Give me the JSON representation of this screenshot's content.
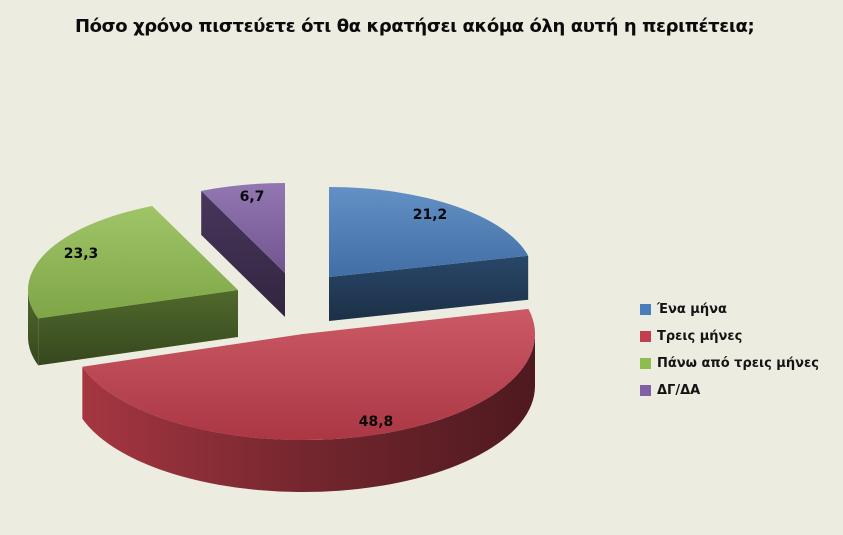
{
  "title": "Πόσο χρόνο πιστεύετε ότι θα κρατήσει ακόμα όλη αυτή η περιπέτεια;",
  "chart_data": {
    "type": "pie",
    "style": "3d-exploded",
    "unit": "percent",
    "title": "Πόσο χρόνο πιστεύετε ότι θα κρατήσει ακόμα όλη αυτή η περιπέτεια;",
    "categories": [
      "Ένα μήνα",
      "Τρεις μήνες",
      "Πάνω από τρεις μήνες",
      "ΔΓ/ΔΑ"
    ],
    "values": [
      21.2,
      48.8,
      23.3,
      6.7
    ],
    "data_labels": [
      "21,2",
      "48,8",
      "23,3",
      "6,7"
    ],
    "colors": [
      "#4A7EBB",
      "#C23F4D",
      "#8FBC4F",
      "#8061A5"
    ],
    "start_angle_deg": 0,
    "direction": "clockwise",
    "legend_position": "right",
    "grid": false
  }
}
